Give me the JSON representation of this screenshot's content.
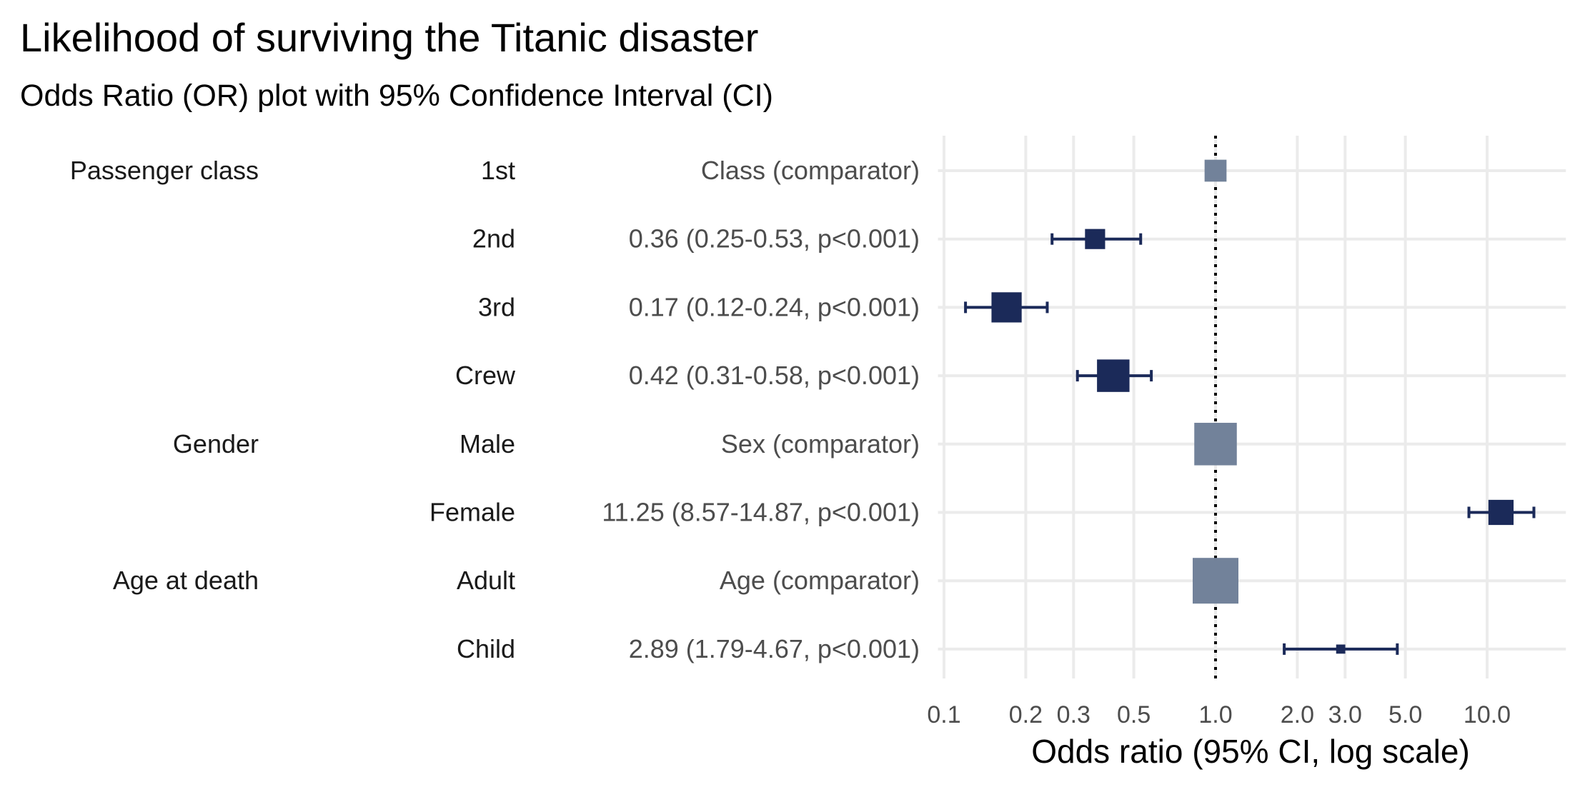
{
  "chart_data": {
    "type": "forest",
    "title": "Likelihood of surviving the Titanic disaster",
    "subtitle": "Odds Ratio (OR) plot with 95% Confidence Interval (CI)",
    "xlabel": "Odds ratio (95% CI, log scale)",
    "x_scale": "log",
    "xlim": [
      0.095,
      19.5
    ],
    "x_ticks": [
      0.1,
      0.2,
      0.3,
      0.5,
      1.0,
      2.0,
      3.0,
      5.0,
      10.0
    ],
    "x_tick_labels": [
      "0.1",
      "0.2",
      "0.3",
      "0.5",
      "1.0",
      "2.0",
      "3.0",
      "5.0",
      "10.0"
    ],
    "reference_line": 1.0,
    "grid": true,
    "colors": {
      "estimate": "#1b2a59",
      "comparator": "#72829a",
      "grid": "#ebebeb"
    },
    "rows": [
      {
        "group": "Passenger class",
        "level": "1st",
        "label": "Class (comparator)",
        "or": 1.0,
        "lo": null,
        "hi": null,
        "comparator": true,
        "relative_size": 0.48
      },
      {
        "group": "",
        "level": "2nd",
        "label": "0.36 (0.25-0.53, p<0.001)",
        "or": 0.36,
        "lo": 0.25,
        "hi": 0.53,
        "comparator": false,
        "relative_size": 0.44
      },
      {
        "group": "",
        "level": "3rd",
        "label": "0.17 (0.12-0.24, p<0.001)",
        "or": 0.17,
        "lo": 0.12,
        "hi": 0.24,
        "comparator": false,
        "relative_size": 0.66
      },
      {
        "group": "",
        "level": "Crew",
        "label": "0.42 (0.31-0.58, p<0.001)",
        "or": 0.42,
        "lo": 0.31,
        "hi": 0.58,
        "comparator": false,
        "relative_size": 0.71
      },
      {
        "group": "Gender",
        "level": "Male",
        "label": "Sex (comparator)",
        "or": 1.0,
        "lo": null,
        "hi": null,
        "comparator": true,
        "relative_size": 0.93
      },
      {
        "group": "",
        "level": "Female",
        "label": "11.25 (8.57-14.87, p<0.001)",
        "or": 11.25,
        "lo": 8.57,
        "hi": 14.87,
        "comparator": false,
        "relative_size": 0.55
      },
      {
        "group": "Age at death",
        "level": "Adult",
        "label": "Age (comparator)",
        "or": 1.0,
        "lo": null,
        "hi": null,
        "comparator": true,
        "relative_size": 1.0
      },
      {
        "group": "",
        "level": "Child",
        "label": "2.89 (1.79-4.67, p<0.001)",
        "or": 2.89,
        "lo": 1.79,
        "hi": 4.67,
        "comparator": false,
        "relative_size": 0.2
      }
    ]
  }
}
